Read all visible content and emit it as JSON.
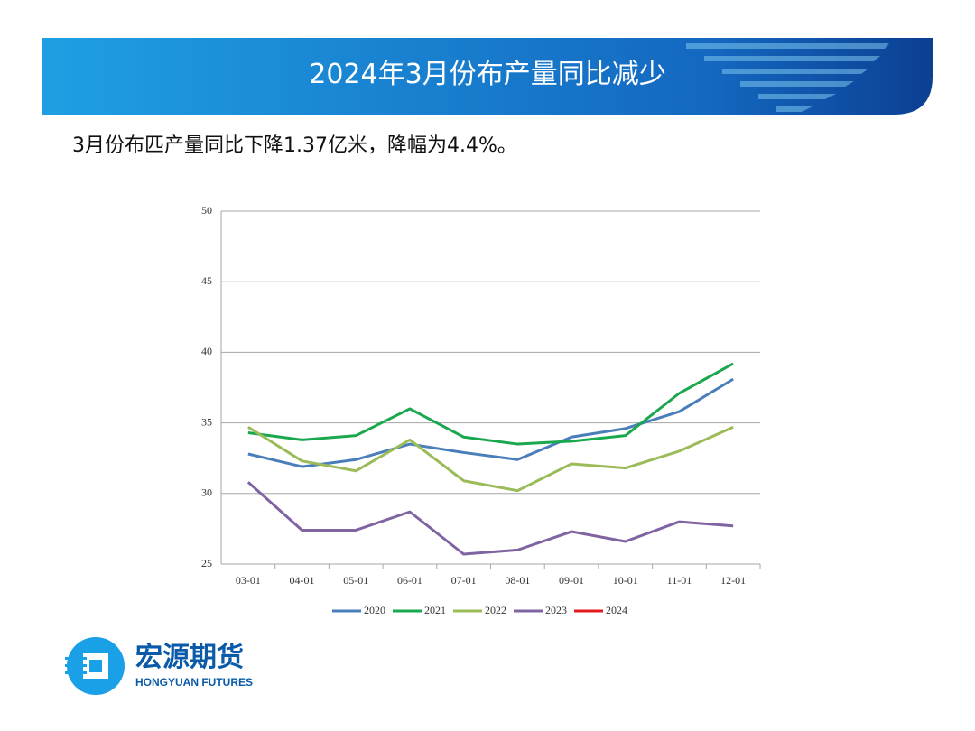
{
  "header": {
    "title": "2024年3月份布产量同比减少"
  },
  "subtitle": "3月份布匹产量同比下降1.37亿米，降幅为4.4%。",
  "logo": {
    "name": "宏源期货",
    "name_en": "HONGYUAN FUTURES"
  },
  "chart_data": {
    "type": "line",
    "categories": [
      "03-01",
      "04-01",
      "05-01",
      "06-01",
      "07-01",
      "08-01",
      "09-01",
      "10-01",
      "11-01",
      "12-01"
    ],
    "series": [
      {
        "name": "2020",
        "color": "#4a7ebb",
        "values": [
          32.8,
          31.9,
          32.4,
          33.5,
          32.9,
          32.4,
          34.0,
          34.6,
          35.8,
          38.1
        ]
      },
      {
        "name": "2021",
        "color": "#1aa84e",
        "values": [
          34.3,
          33.8,
          34.1,
          36.0,
          34.0,
          33.5,
          33.7,
          34.1,
          37.1,
          39.2
        ]
      },
      {
        "name": "2022",
        "color": "#9bbb59",
        "values": [
          34.7,
          32.3,
          31.6,
          33.8,
          30.9,
          30.2,
          32.1,
          31.8,
          33.0,
          34.7
        ]
      },
      {
        "name": "2023",
        "color": "#8064a2",
        "values": [
          30.8,
          27.4,
          27.4,
          28.7,
          25.7,
          26.0,
          27.3,
          26.6,
          28.0,
          27.7
        ]
      },
      {
        "name": "2024",
        "color": "#e41a1c",
        "values": [
          null,
          null,
          null,
          null,
          null,
          null,
          null,
          null,
          null,
          null
        ]
      }
    ],
    "ylim": [
      25,
      50
    ],
    "yticks": [
      25,
      30,
      35,
      40,
      45,
      50
    ],
    "grid": true,
    "legend": "bottom"
  }
}
